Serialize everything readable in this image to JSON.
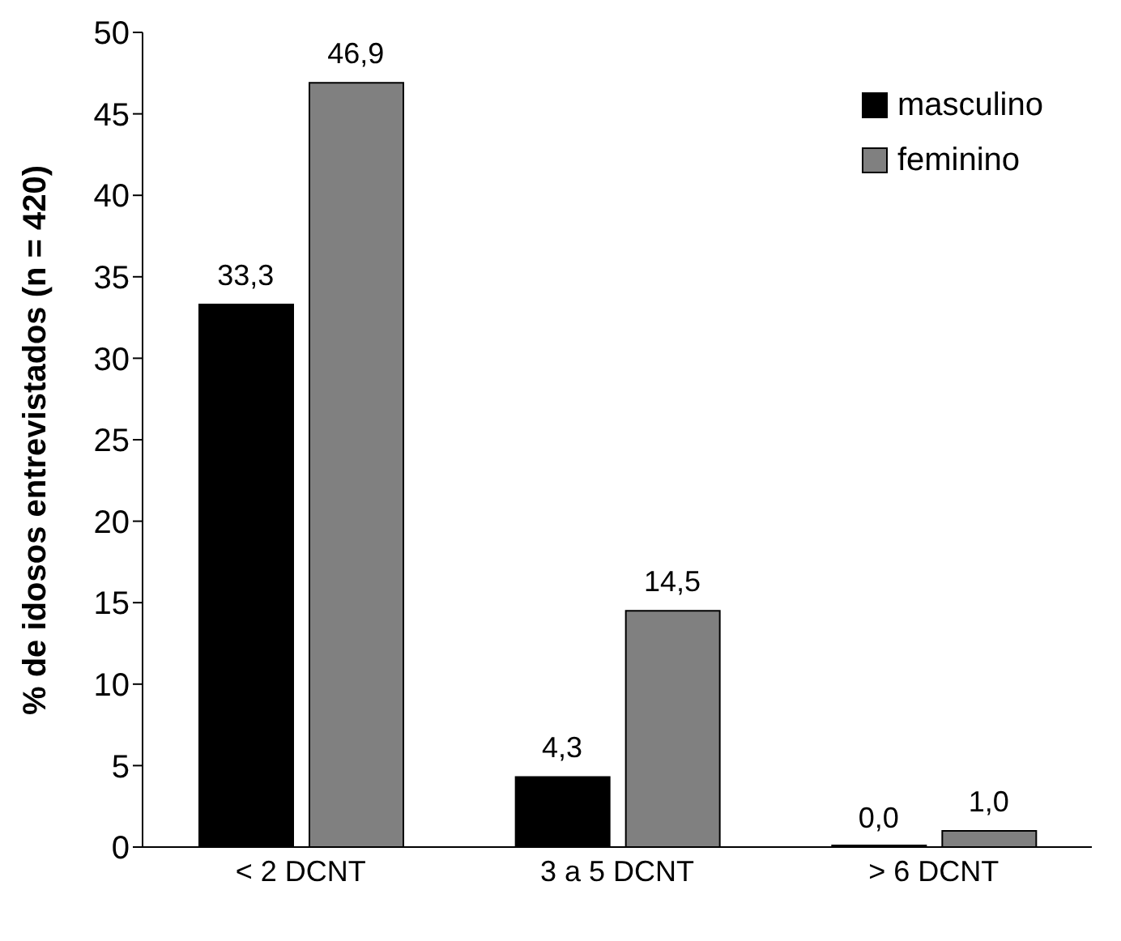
{
  "chart_data": {
    "type": "bar",
    "ylabel": "% de idosos entrevistados (n = 420)",
    "categories": [
      "< 2 DCNT",
      "3 a 5 DCNT",
      "> 6 DCNT"
    ],
    "series": [
      {
        "name": "masculino",
        "color": "#000000",
        "values": [
          33.3,
          4.3,
          0.0
        ],
        "value_labels": [
          "33,3",
          "4,3",
          "0,0"
        ]
      },
      {
        "name": "feminino",
        "color": "#808080",
        "values": [
          46.9,
          14.5,
          1.0
        ],
        "value_labels": [
          "46,9",
          "14,5",
          "1,0"
        ]
      }
    ],
    "ylim": [
      0,
      50
    ],
    "yticks": [
      0,
      5,
      10,
      15,
      20,
      25,
      30,
      35,
      40,
      45,
      50
    ],
    "grid": false,
    "legend": "top right"
  }
}
